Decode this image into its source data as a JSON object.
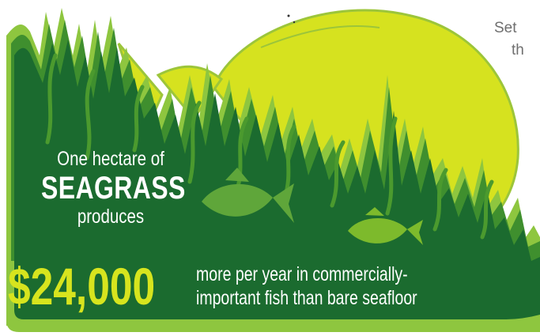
{
  "corner_text": {
    "line1": "Set",
    "line2": "th"
  },
  "headline": {
    "line1": "One hectare of",
    "line2": "SEAGRASS",
    "line3": "produces"
  },
  "stat": {
    "amount": "$24,000",
    "description_line1": "more per year in commercially-",
    "description_line2": "important fish than bare seafloor"
  },
  "colors": {
    "dark_green": "#1b6b2f",
    "mid_green": "#4b9a2e",
    "light_green": "#7dba2c",
    "lime_fish": "#d6e21f",
    "lime_outline": "#aed13a",
    "amount_yellow": "#d7e41e",
    "corner_text_gray": "#6f6f6f"
  },
  "icons": {
    "big_fish": "big-fish-silhouette",
    "small_fish_left": "small-fish-icon",
    "small_fish_right": "small-fish-icon"
  }
}
